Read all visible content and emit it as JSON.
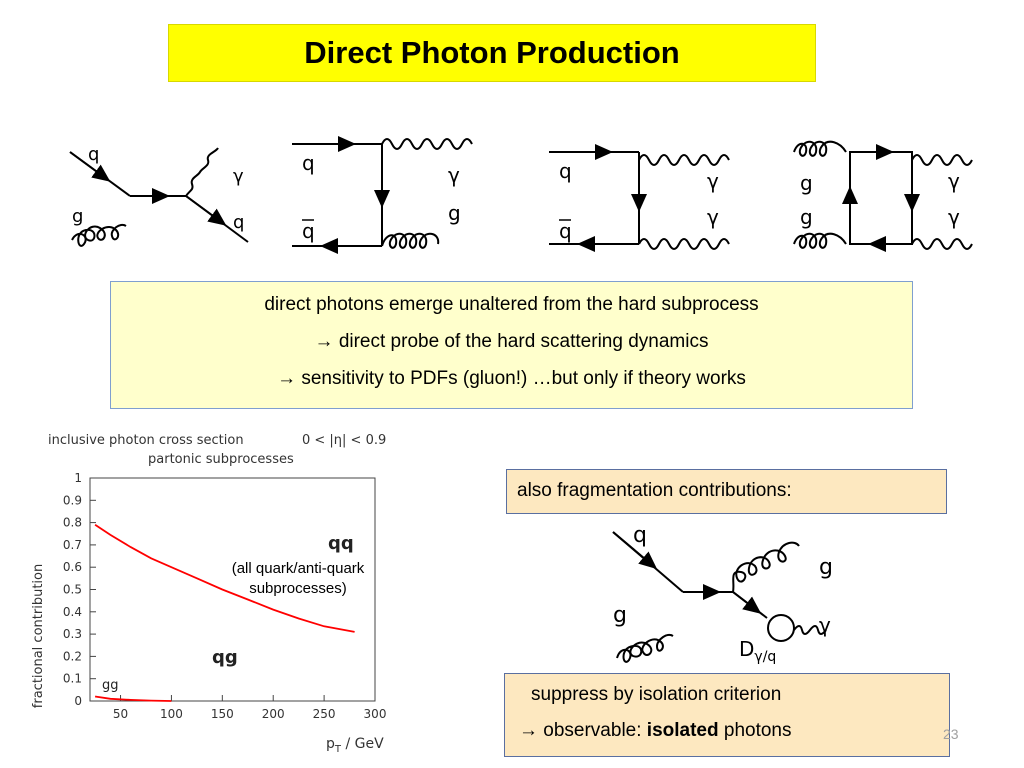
{
  "title": "Direct Photon Production",
  "diagrams": {
    "d1": {
      "q": "q",
      "g": "g",
      "gamma": "γ",
      "q_out": "q"
    },
    "d2": {
      "q": "q",
      "qbar": "q",
      "gamma": "γ",
      "g": "g"
    },
    "d3": {
      "q": "q",
      "qbar": "q",
      "gamma1": "γ",
      "gamma2": "γ"
    },
    "d4": {
      "g1": "g",
      "g2": "g",
      "gamma1": "γ",
      "gamma2": "γ"
    },
    "frag": {
      "q": "q",
      "g_in": "g",
      "g_out": "g",
      "gamma": "γ",
      "D": "D",
      "D_sub": "γ/q"
    }
  },
  "direct_box": {
    "line1": "direct photons emerge unaltered from the hard subprocess",
    "line2": "direct probe of the hard scattering dynamics",
    "line3": "sensitivity to PDFs  (gluon!)  …but only if theory works",
    "arrow": "→"
  },
  "frag_box": {
    "text": "also fragmentation contributions:"
  },
  "iso_box": {
    "line1": "suppress by isolation criterion",
    "line2_prefix": "observable:  ",
    "line2_bold": "isolated",
    "line2_suffix": " photons",
    "arrow": "→"
  },
  "slide_number": "23",
  "chart_data": {
    "type": "line",
    "title": "inclusive photon cross section",
    "title_extra": "0 < |η| < 0.9",
    "subtitle": "partonic subprocesses",
    "xlabel": "p",
    "xlabel_sub": "T",
    "xlabel_unit": " / GeV",
    "ylabel": "fractional contribution",
    "xlim": [
      20,
      300
    ],
    "ylim": [
      0,
      1
    ],
    "xticks": [
      50,
      100,
      150,
      200,
      250,
      300
    ],
    "yticks": [
      0,
      0.1,
      0.2,
      0.3,
      0.4,
      0.5,
      0.6,
      0.7,
      0.8,
      0.9,
      1
    ],
    "grid": false,
    "series": [
      {
        "name": "qg",
        "color": "#ff0000",
        "x": [
          25,
          40,
          60,
          80,
          100,
          125,
          150,
          175,
          200,
          225,
          250,
          280
        ],
        "y": [
          0.79,
          0.745,
          0.69,
          0.64,
          0.6,
          0.55,
          0.5,
          0.455,
          0.41,
          0.37,
          0.335,
          0.31
        ]
      },
      {
        "name": "gg",
        "color": "#ff0000",
        "x": [
          25,
          40,
          60,
          80,
          100
        ],
        "y": [
          0.02,
          0.01,
          0.005,
          0.002,
          0.0
        ]
      }
    ],
    "region_labels": {
      "qq": "qq",
      "qg": "qg",
      "gg": "gg"
    },
    "annotation": {
      "line1": "(all quark/anti-quark",
      "line2": "subprocesses)"
    }
  }
}
